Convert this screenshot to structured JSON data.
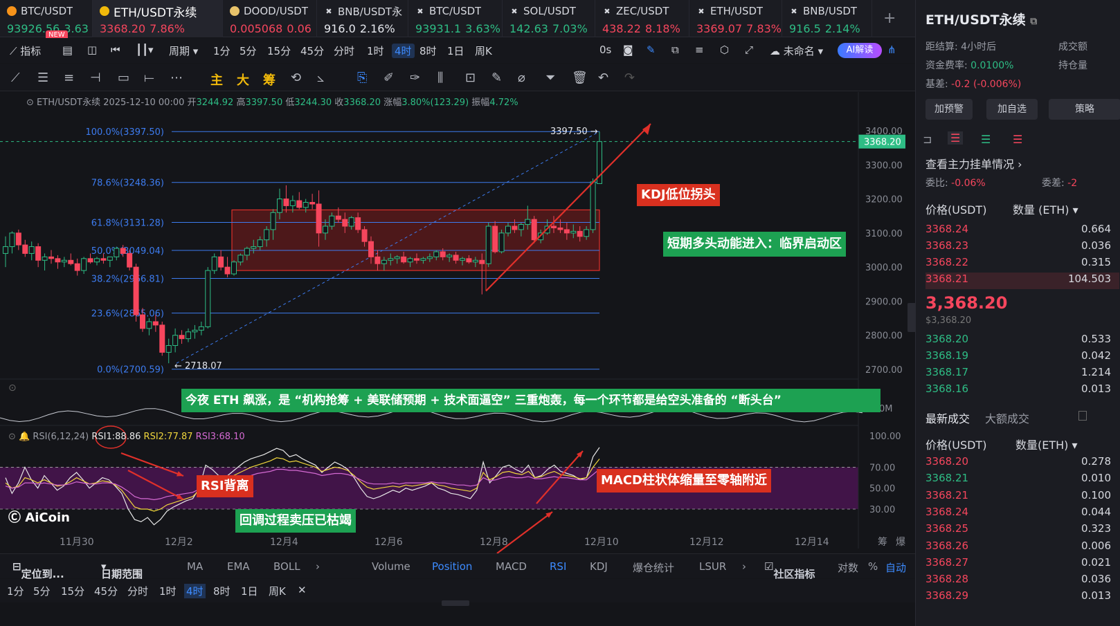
{
  "tabs": [
    {
      "name": "BTC/USDT",
      "price": "93926.56",
      "change": "3.63",
      "dir": "up"
    },
    {
      "name": "ETH/USDT永续",
      "price": "3368.20",
      "change": "7.86%",
      "dir": "dn"
    },
    {
      "name": "DOOD/USDT",
      "price": "0.005068",
      "change": "0.06",
      "dir": "dn"
    },
    {
      "name": "BNB/USDT永",
      "price": "916.0",
      "change": "2.16%",
      "dir": "neutral"
    },
    {
      "name": "BTC/USDT",
      "price": "93931.1",
      "change": "3.63%",
      "dir": "up"
    },
    {
      "name": "SOL/USDT",
      "price": "142.63",
      "change": "7.03%",
      "dir": "up"
    },
    {
      "name": "ZEC/USDT",
      "price": "438.22",
      "change": "8.18%",
      "dir": "dn"
    },
    {
      "name": "ETH/USDT",
      "price": "3369.07",
      "change": "7.83%",
      "dir": "dn"
    },
    {
      "name": "BNB/USDT",
      "price": "916.5",
      "change": "2.14%",
      "dir": "up"
    }
  ],
  "new_badge": "NEW",
  "toolbar1": {
    "indicators": "指标",
    "period": "周期",
    "intervals": [
      "1分",
      "5分",
      "15分",
      "45分",
      "分时",
      "1时",
      "4时",
      "8时",
      "1日",
      "周K"
    ],
    "selected": "4时",
    "zero_s": "0s",
    "layout_name": "未命名",
    "ai": "AI解读"
  },
  "toolbar2": {
    "labels": [
      "主",
      "大",
      "筹"
    ]
  },
  "info_line": {
    "symbol": "ETH/USDT永续",
    "time": "2025-12-10 00:00",
    "open_label": "开",
    "open": "3244.92",
    "high_label": "高",
    "high": "3397.50",
    "low_label": "低",
    "low": "3244.30",
    "close_label": "收",
    "close": "3368.20",
    "chg_label": "涨幅",
    "chg": "3.80%(123.29)",
    "amp_label": "振幅",
    "amp": "4.72%"
  },
  "fib_levels": [
    {
      "label": "100.0%(3397.50)",
      "price": 3397.5
    },
    {
      "label": "78.6%(3248.36)",
      "price": 3248.36
    },
    {
      "label": "61.8%(3131.28)",
      "price": 3131.28
    },
    {
      "label": "50.0%(3049.04)",
      "price": 3049.04
    },
    {
      "label": "38.2%(2966.81)",
      "price": 2966.81
    },
    {
      "label": "23.6%(2865.06)",
      "price": 2865.06
    },
    {
      "label": "0.0%(2700.59)",
      "price": 2700.59
    }
  ],
  "price_axis": [
    "3400.00",
    "3300.00",
    "3200.00",
    "3100.00",
    "3000.00",
    "2900.00",
    "2800.00",
    "2700.00"
  ],
  "price_axis_values": [
    3400,
    3300,
    3200,
    3100,
    3000,
    2900,
    2800,
    2700
  ],
  "current_price": "3368.20",
  "current_price_value": 3368.2,
  "high_mark": "3397.50",
  "low_mark": "2718.07",
  "candles": [
    [
      3040,
      3090,
      3000,
      3060
    ],
    [
      3060,
      3105,
      3040,
      3100
    ],
    [
      3100,
      3110,
      3050,
      3065
    ],
    [
      3065,
      3080,
      3030,
      3040
    ],
    [
      3040,
      3075,
      3020,
      3060
    ],
    [
      3060,
      3070,
      3000,
      3020
    ],
    [
      3020,
      3040,
      2990,
      3030
    ],
    [
      3030,
      3050,
      3010,
      3025
    ],
    [
      3025,
      3035,
      2995,
      3015
    ],
    [
      3015,
      3030,
      3000,
      3020
    ],
    [
      3020,
      3040,
      3005,
      3010
    ],
    [
      3010,
      3025,
      2975,
      2990
    ],
    [
      2990,
      3030,
      2980,
      3025
    ],
    [
      3025,
      3040,
      3010,
      3015
    ],
    [
      3015,
      3030,
      3005,
      3025
    ],
    [
      3025,
      3040,
      3010,
      3020
    ],
    [
      3020,
      3030,
      3000,
      3030
    ],
    [
      3030,
      3060,
      3020,
      3055
    ],
    [
      3055,
      3065,
      3030,
      3040
    ],
    [
      3040,
      3050,
      2990,
      3000
    ],
    [
      3000,
      3010,
      2840,
      2860
    ],
    [
      2860,
      2880,
      2810,
      2820
    ],
    [
      2820,
      2850,
      2800,
      2840
    ],
    [
      2840,
      2860,
      2810,
      2830
    ],
    [
      2830,
      2840,
      2740,
      2750
    ],
    [
      2750,
      2790,
      2718,
      2770
    ],
    [
      2770,
      2820,
      2750,
      2800
    ],
    [
      2800,
      2815,
      2775,
      2790
    ],
    [
      2790,
      2820,
      2780,
      2810
    ],
    [
      2810,
      2830,
      2790,
      2815
    ],
    [
      2815,
      2840,
      2800,
      2825
    ],
    [
      2825,
      3000,
      2820,
      2990
    ],
    [
      2990,
      3040,
      2980,
      3030
    ],
    [
      3030,
      3050,
      2990,
      3000
    ],
    [
      3000,
      3030,
      2970,
      2980
    ],
    [
      2980,
      3020,
      2975,
      3015
    ],
    [
      3015,
      3040,
      3005,
      3035
    ],
    [
      3035,
      3060,
      3020,
      3055
    ],
    [
      3055,
      3080,
      3040,
      3060
    ],
    [
      3060,
      3090,
      3050,
      3080
    ],
    [
      3080,
      3120,
      3060,
      3110
    ],
    [
      3110,
      3170,
      3080,
      3160
    ],
    [
      3160,
      3230,
      3140,
      3200
    ],
    [
      3200,
      3240,
      3160,
      3180
    ],
    [
      3180,
      3210,
      3160,
      3195
    ],
    [
      3195,
      3220,
      3170,
      3175
    ],
    [
      3175,
      3200,
      3160,
      3190
    ],
    [
      3190,
      3215,
      3170,
      3185
    ],
    [
      3185,
      3225,
      3060,
      3100
    ],
    [
      3100,
      3140,
      3080,
      3120
    ],
    [
      3120,
      3160,
      3110,
      3150
    ],
    [
      3150,
      3175,
      3130,
      3140
    ],
    [
      3140,
      3160,
      3100,
      3120
    ],
    [
      3120,
      3150,
      3110,
      3145
    ],
    [
      3145,
      3160,
      3100,
      3110
    ],
    [
      3110,
      3120,
      3060,
      3075
    ],
    [
      3075,
      3090,
      3010,
      3030
    ],
    [
      3030,
      3050,
      2990,
      3010
    ],
    [
      3010,
      3030,
      2990,
      3020
    ],
    [
      3020,
      3040,
      3005,
      3025
    ],
    [
      3025,
      3035,
      3010,
      3030
    ],
    [
      3030,
      3045,
      3010,
      3015
    ],
    [
      3015,
      3030,
      3000,
      3025
    ],
    [
      3025,
      3040,
      3010,
      3020
    ],
    [
      3020,
      3030,
      3010,
      3025
    ],
    [
      3025,
      3040,
      3015,
      3030
    ],
    [
      3030,
      3050,
      3020,
      3045
    ],
    [
      3045,
      3055,
      3020,
      3030
    ],
    [
      3030,
      3040,
      3015,
      3035
    ],
    [
      3035,
      3045,
      3010,
      3020
    ],
    [
      3020,
      3030,
      3005,
      3025
    ],
    [
      3025,
      3035,
      3010,
      3015
    ],
    [
      3015,
      3030,
      3000,
      3020
    ],
    [
      3020,
      3040,
      2920,
      3010
    ],
    [
      3010,
      3130,
      3000,
      3120
    ],
    [
      3120,
      3135,
      3040,
      3045
    ],
    [
      3045,
      3110,
      3040,
      3100
    ],
    [
      3100,
      3130,
      3090,
      3120
    ],
    [
      3120,
      3140,
      3100,
      3110
    ],
    [
      3110,
      3130,
      3090,
      3125
    ],
    [
      3125,
      3180,
      3110,
      3140
    ],
    [
      3140,
      3150,
      3070,
      3080
    ],
    [
      3080,
      3110,
      3070,
      3100
    ],
    [
      3100,
      3140,
      3095,
      3120
    ],
    [
      3120,
      3150,
      3100,
      3115
    ],
    [
      3115,
      3140,
      3100,
      3110
    ],
    [
      3110,
      3130,
      3080,
      3100
    ],
    [
      3100,
      3125,
      3085,
      3105
    ],
    [
      3105,
      3120,
      3075,
      3090
    ],
    [
      3090,
      3120,
      3080,
      3110
    ],
    [
      3110,
      3260,
      3100,
      3250
    ],
    [
      3244.92,
      3397.5,
      3244.3,
      3368.2
    ]
  ],
  "annotations": {
    "kdj": "KDJ低位拐头",
    "short_bull": "短期多头动能进入：临界启动区",
    "headline": "今夜 ETH 飙涨，是 “机构抢筹 + 美联储预期 + 技术面逼空” 三重炮轰，每一个环节都是给空头准备的 “断头台”",
    "rsi_div": "RSI背离",
    "sell_dry": "回调过程卖压已枯竭",
    "macd": "MACD柱状体缩量至零轴附近"
  },
  "rsi": {
    "title": "RSI(6,12,24)",
    "rsi1": "RSI1:88.86",
    "rsi2": "RSI2:77.87",
    "rsi3": "RSI3:68.10",
    "axis": [
      "100.00",
      "70.00",
      "50.00",
      "30.00"
    ],
    "r1": [
      60,
      45,
      55,
      70,
      58,
      50,
      62,
      55,
      48,
      52,
      60,
      65,
      58,
      50,
      55,
      60,
      58,
      52,
      45,
      30,
      20,
      18,
      22,
      15,
      20,
      28,
      32,
      35,
      38,
      40,
      50,
      72,
      68,
      62,
      60,
      65,
      70,
      75,
      78,
      80,
      82,
      85,
      88,
      86,
      80,
      82,
      78,
      75,
      72,
      65,
      70,
      75,
      72,
      68,
      60,
      50,
      42,
      40,
      42,
      45,
      48,
      46,
      50,
      48,
      50,
      52,
      55,
      50,
      48,
      45,
      44,
      42,
      40,
      48,
      75,
      55,
      62,
      70,
      72,
      68,
      65,
      72,
      60,
      62,
      68,
      72,
      66,
      64,
      62,
      58,
      60,
      80,
      88.86
    ],
    "r2": [
      55,
      50,
      52,
      60,
      58,
      55,
      58,
      55,
      52,
      53,
      56,
      60,
      57,
      54,
      55,
      57,
      56,
      53,
      48,
      40,
      32,
      30,
      30,
      28,
      30,
      34,
      36,
      38,
      40,
      42,
      48,
      62,
      62,
      60,
      59,
      61,
      64,
      67,
      70,
      72,
      74,
      76,
      79,
      78,
      75,
      76,
      74,
      72,
      70,
      66,
      68,
      70,
      69,
      67,
      62,
      56,
      51,
      49,
      50,
      51,
      52,
      51,
      53,
      52,
      53,
      54,
      55,
      53,
      52,
      50,
      49,
      48,
      47,
      50,
      65,
      58,
      61,
      65,
      66,
      64,
      63,
      66,
      60,
      61,
      64,
      66,
      63,
      62,
      61,
      59,
      60,
      70,
      77.87
    ],
    "r3": [
      52,
      50,
      51,
      55,
      55,
      54,
      55,
      54,
      53,
      53,
      54,
      56,
      55,
      54,
      54,
      55,
      55,
      54,
      51,
      47,
      42,
      40,
      40,
      39,
      40,
      42,
      43,
      44,
      45,
      46,
      49,
      56,
      57,
      57,
      57,
      58,
      59,
      61,
      62,
      64,
      65,
      66,
      68,
      68,
      67,
      67,
      66,
      65,
      64,
      62,
      63,
      64,
      64,
      63,
      61,
      58,
      55,
      54,
      54,
      54,
      55,
      54,
      55,
      55,
      55,
      55,
      56,
      55,
      55,
      54,
      53,
      53,
      52,
      53,
      60,
      57,
      58,
      60,
      61,
      60,
      60,
      61,
      59,
      59,
      60,
      61,
      60,
      60,
      59,
      58,
      58,
      63,
      68.1
    ]
  },
  "time_axis": [
    "11月30",
    "12月2",
    "12月4",
    "12月6",
    "12月8",
    "12月10",
    "12月12",
    "12月14"
  ],
  "time_axis_right": [
    "筹",
    "爆"
  ],
  "bottom_bar1": {
    "locate": "定位到...",
    "date_range": "日期范围",
    "items": [
      "MA",
      "EMA",
      "BOLL",
      "Volume",
      "Position",
      "MACD",
      "RSI",
      "KDJ",
      "爆仓统计",
      "LSUR"
    ],
    "active": [
      "Position",
      "RSI"
    ],
    "community": "社区指标",
    "log": "对数",
    "pct": "%",
    "auto": "自动"
  },
  "bottom_bar2": {
    "items": [
      "1分",
      "5分",
      "15分",
      "45分",
      "分时",
      "1时",
      "4时",
      "8时",
      "1日",
      "周K"
    ],
    "selected": "4时"
  },
  "watermark": "AiCoin",
  "vol_axis": "0M",
  "right_panel": {
    "symbol": "ETH/USDT永续",
    "settle_label": "距结算:",
    "settle": "4小时后",
    "open_interest_label": "成交额",
    "funding_label": "资金费率:",
    "funding": "0.0100%",
    "position_label": "持仓量",
    "basis_label": "基差:",
    "basis": "-0.2 (-0.006%)",
    "buttons": [
      "加预警",
      "加自选",
      "策略"
    ],
    "depth_link": "查看主力挂单情况",
    "ratio_label": "委比:",
    "ratio": "-0.06%",
    "diff_label": "委差:",
    "diff": "-2",
    "col_price": "价格(USDT)",
    "col_qty": "数量 (ETH)",
    "asks": [
      [
        "3368.24",
        "0.664"
      ],
      [
        "3368.23",
        "0.036"
      ],
      [
        "3368.22",
        "0.315"
      ],
      [
        "3368.21",
        "104.503"
      ]
    ],
    "last": "3,368.20",
    "last_usd": "$3,368.20",
    "bids": [
      [
        "3368.20",
        "0.533"
      ],
      [
        "3368.19",
        "0.042"
      ],
      [
        "3368.17",
        "1.214"
      ],
      [
        "3368.16",
        "0.013"
      ]
    ],
    "trades_tab": "最新成交",
    "big_tab": "大额成交",
    "trade_price": "价格(USDT)",
    "trade_qty": "数量(ETH)",
    "trades": [
      [
        "3368.20",
        "0.278",
        "dn"
      ],
      [
        "3368.21",
        "0.010",
        "up"
      ],
      [
        "3368.21",
        "0.100",
        "dn"
      ],
      [
        "3368.24",
        "0.044",
        "dn"
      ],
      [
        "3368.25",
        "0.323",
        "dn"
      ],
      [
        "3368.26",
        "0.006",
        "dn"
      ],
      [
        "3368.27",
        "0.021",
        "dn"
      ],
      [
        "3368.28",
        "0.036",
        "dn"
      ],
      [
        "3368.29",
        "0.013",
        "dn"
      ]
    ]
  },
  "colors": {
    "up": "#2ebd85",
    "down": "#f6465d",
    "fib": "#3d7cf0",
    "accent": "#3d8bff",
    "rsi_zone": "#3b1240"
  }
}
